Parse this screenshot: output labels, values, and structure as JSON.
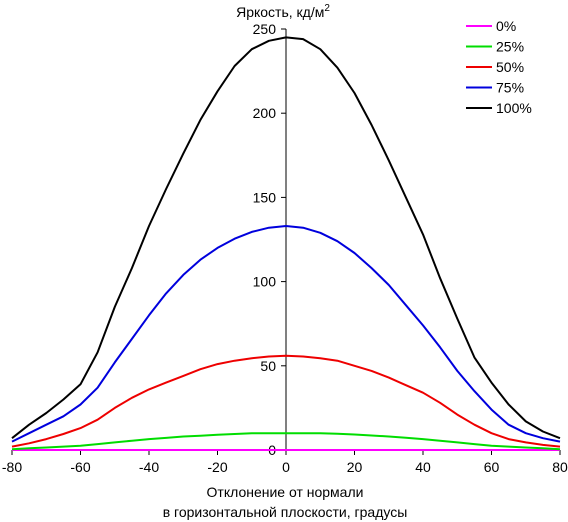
{
  "chart_data": {
    "type": "line",
    "ylabel": "Яркость, кд/м",
    "ylabel_sup": "2",
    "xlabel_line1": "Отклонение от нормали",
    "xlabel_line2": "в горизонтальной плоскости, градусы",
    "xlim": [
      -80,
      80
    ],
    "ylim": [
      0,
      250
    ],
    "x_ticks": [
      -80,
      -60,
      -40,
      -20,
      0,
      20,
      40,
      60,
      80
    ],
    "y_ticks": [
      0,
      50,
      100,
      150,
      200,
      250
    ],
    "x_tick_labels": [
      "-80",
      "-60",
      "-40",
      "-20",
      "0",
      "20",
      "40",
      "60",
      "80"
    ],
    "y_tick_labels": [
      "0",
      "50",
      "100",
      "150",
      "200",
      "250"
    ],
    "grid": false,
    "legend_position": "top-right",
    "x": [
      -80,
      -75,
      -70,
      -65,
      -60,
      -55,
      -50,
      -45,
      -40,
      -35,
      -30,
      -25,
      -20,
      -15,
      -10,
      -5,
      0,
      5,
      10,
      15,
      20,
      25,
      30,
      35,
      40,
      45,
      50,
      55,
      60,
      65,
      70,
      75,
      80
    ],
    "series": [
      {
        "name": "0%",
        "color": "#ff00ff",
        "values": [
          0,
          0,
          0,
          0,
          0,
          0,
          0,
          0,
          0,
          0,
          0,
          0,
          0,
          0,
          0,
          0,
          0,
          0,
          0,
          0,
          0,
          0,
          0,
          0,
          0,
          0,
          0,
          0,
          0,
          0,
          0,
          0,
          0
        ]
      },
      {
        "name": "25%",
        "color": "#00dd00",
        "values": [
          0.5,
          1,
          1.5,
          2,
          2.5,
          3.5,
          4.5,
          5.5,
          6.5,
          7.2,
          8,
          8.5,
          9,
          9.5,
          10,
          10,
          10,
          10,
          10,
          9.7,
          9.2,
          8.6,
          8,
          7.3,
          6.5,
          5.5,
          4.5,
          3.5,
          2.5,
          2,
          1.5,
          1,
          0.5
        ]
      },
      {
        "name": "50%",
        "color": "#ee0000",
        "values": [
          2,
          4,
          6.5,
          9.5,
          13,
          18,
          25,
          31,
          36,
          40,
          44,
          48,
          51,
          53,
          54.5,
          55.5,
          56,
          55.5,
          54.5,
          53,
          50,
          47,
          43,
          38.5,
          34,
          28,
          21,
          15,
          10,
          6.5,
          4.5,
          3,
          2
        ]
      },
      {
        "name": "75%",
        "color": "#0000dd",
        "values": [
          5,
          10,
          15,
          20,
          27,
          37,
          52,
          66,
          80,
          93,
          104,
          113,
          120,
          125.5,
          129.5,
          132,
          133,
          132,
          129,
          124,
          117,
          108,
          98,
          86,
          74,
          61,
          47,
          35,
          24,
          15,
          10,
          7,
          5
        ]
      },
      {
        "name": "100%",
        "color": "#000000",
        "values": [
          7,
          15,
          22,
          30,
          39,
          58,
          85,
          108,
          133,
          155,
          176,
          196,
          213,
          228,
          238,
          243,
          245,
          244,
          238,
          227,
          212,
          193,
          172,
          150,
          128,
          102,
          78,
          55,
          40,
          27,
          17,
          11,
          7
        ]
      }
    ]
  }
}
